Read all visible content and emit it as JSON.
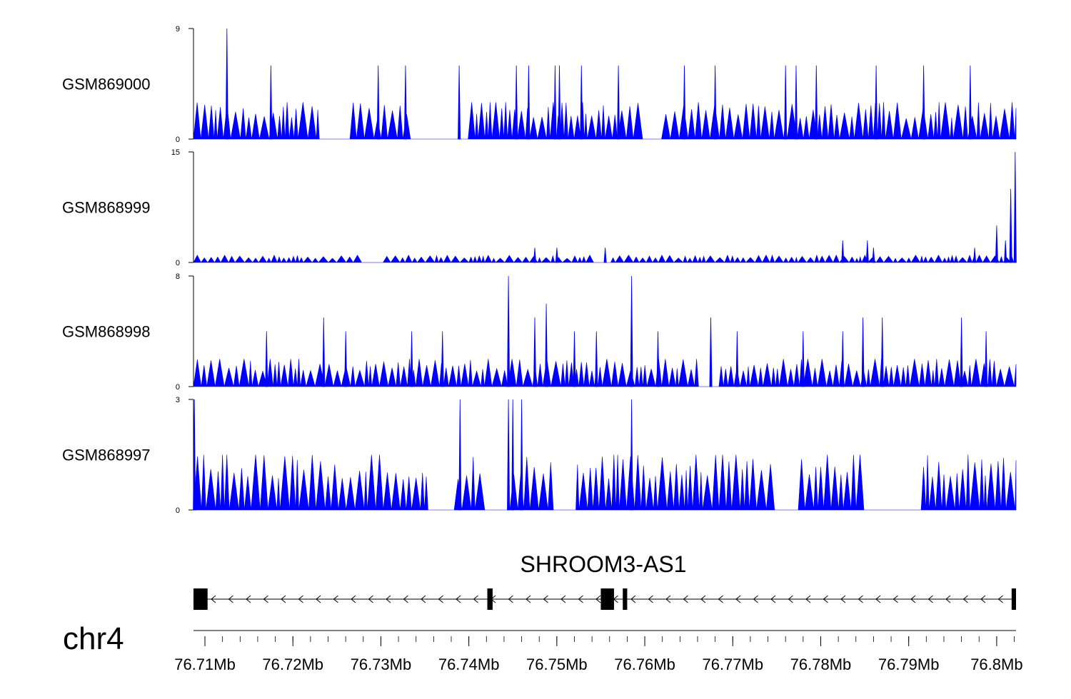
{
  "chart_data": {
    "type": "area",
    "xaxis": {
      "range_mb": [
        76.7087,
        76.8022
      ],
      "major_ticks": [
        76.71,
        76.72,
        76.73,
        76.74,
        76.75,
        76.76,
        76.77,
        76.78,
        76.79,
        76.8
      ],
      "tick_labels": [
        "76.71Mb",
        "76.72Mb",
        "76.73Mb",
        "76.74Mb",
        "76.75Mb",
        "76.76Mb",
        "76.77Mb",
        "76.78Mb",
        "76.79Mb",
        "76.8Mb"
      ],
      "minor_step_mb": 0.002
    },
    "chromosome": "chr4",
    "color": "#0000ff",
    "tracks": [
      {
        "name": "GSM869000",
        "ylim": [
          0,
          9
        ],
        "ymax_label": "9",
        "ymin_label": "0",
        "baseline": 3,
        "peaks": [
          [
            76.7125,
            9
          ],
          [
            76.7175,
            6
          ],
          [
            76.7297,
            6
          ],
          [
            76.7328,
            6
          ],
          [
            76.7389,
            6
          ],
          [
            76.7454,
            6
          ],
          [
            76.7468,
            6
          ],
          [
            76.7498,
            6
          ],
          [
            76.7503,
            6
          ],
          [
            76.7528,
            6
          ],
          [
            76.757,
            6
          ],
          [
            76.7645,
            6
          ],
          [
            76.768,
            6
          ],
          [
            76.776,
            6
          ],
          [
            76.7772,
            6
          ],
          [
            76.7795,
            6
          ],
          [
            76.7863,
            6
          ],
          [
            76.7917,
            6
          ],
          [
            76.797,
            6
          ]
        ],
        "gaps": [
          [
            76.723,
            76.7265
          ],
          [
            76.7335,
            76.736
          ],
          [
            76.7365,
            76.7395
          ],
          [
            76.7602,
            76.762
          ]
        ]
      },
      {
        "name": "GSM868999",
        "ylim": [
          0,
          15
        ],
        "ymax_label": "15",
        "ymin_label": "0",
        "baseline": 1,
        "peaks": [
          [
            76.7475,
            2
          ],
          [
            76.75,
            2
          ],
          [
            76.7555,
            2
          ],
          [
            76.7825,
            3
          ],
          [
            76.7853,
            3
          ],
          [
            76.786,
            2
          ],
          [
            76.7975,
            2
          ],
          [
            76.8,
            5
          ],
          [
            76.801,
            3
          ],
          [
            76.8016,
            10
          ],
          [
            76.8021,
            15
          ]
        ],
        "gaps": [
          [
            76.728,
            76.7305
          ],
          [
            76.7545,
            76.756
          ]
        ]
      },
      {
        "name": "GSM868998",
        "ylim": [
          0,
          8
        ],
        "ymax_label": "8",
        "ymin_label": "0",
        "baseline": 2,
        "peaks": [
          [
            76.717,
            4
          ],
          [
            76.7235,
            5
          ],
          [
            76.726,
            4
          ],
          [
            76.7335,
            4
          ],
          [
            76.737,
            4
          ],
          [
            76.7445,
            8
          ],
          [
            76.7488,
            6
          ],
          [
            76.7475,
            5
          ],
          [
            76.752,
            4
          ],
          [
            76.7545,
            4
          ],
          [
            76.7585,
            8
          ],
          [
            76.7615,
            4
          ],
          [
            76.7675,
            5
          ],
          [
            76.7705,
            4
          ],
          [
            76.778,
            4
          ],
          [
            76.7825,
            4
          ],
          [
            76.7848,
            5
          ],
          [
            76.787,
            5
          ],
          [
            76.796,
            5
          ],
          [
            76.7988,
            4
          ]
        ],
        "gaps": [
          [
            76.766,
            76.7685
          ]
        ]
      },
      {
        "name": "GSM868997",
        "ylim": [
          0,
          3
        ],
        "ymax_label": "3",
        "ymin_label": "0",
        "baseline": 1.5,
        "peaks": [
          [
            76.7088,
            3
          ],
          [
            76.739,
            3
          ],
          [
            76.7445,
            3
          ],
          [
            76.745,
            3
          ],
          [
            76.746,
            3
          ],
          [
            76.7585,
            3
          ]
        ],
        "gaps": [
          [
            76.7355,
            76.7385
          ],
          [
            76.7415,
            76.745
          ],
          [
            76.7495,
            76.752
          ],
          [
            76.775,
            76.7775
          ],
          [
            76.7845,
            76.7875
          ],
          [
            76.7875,
            76.7915
          ]
        ]
      }
    ],
    "gene": {
      "name": "SHROOM3-AS1",
      "strand": "-",
      "start_mb": 76.7087,
      "end_mb": 76.8022,
      "exons_mb": [
        [
          76.7087,
          76.7103
        ],
        [
          76.7421,
          76.7427
        ],
        [
          76.755,
          76.7565
        ],
        [
          76.7575,
          76.758
        ],
        [
          76.8017,
          76.8022
        ]
      ]
    }
  }
}
